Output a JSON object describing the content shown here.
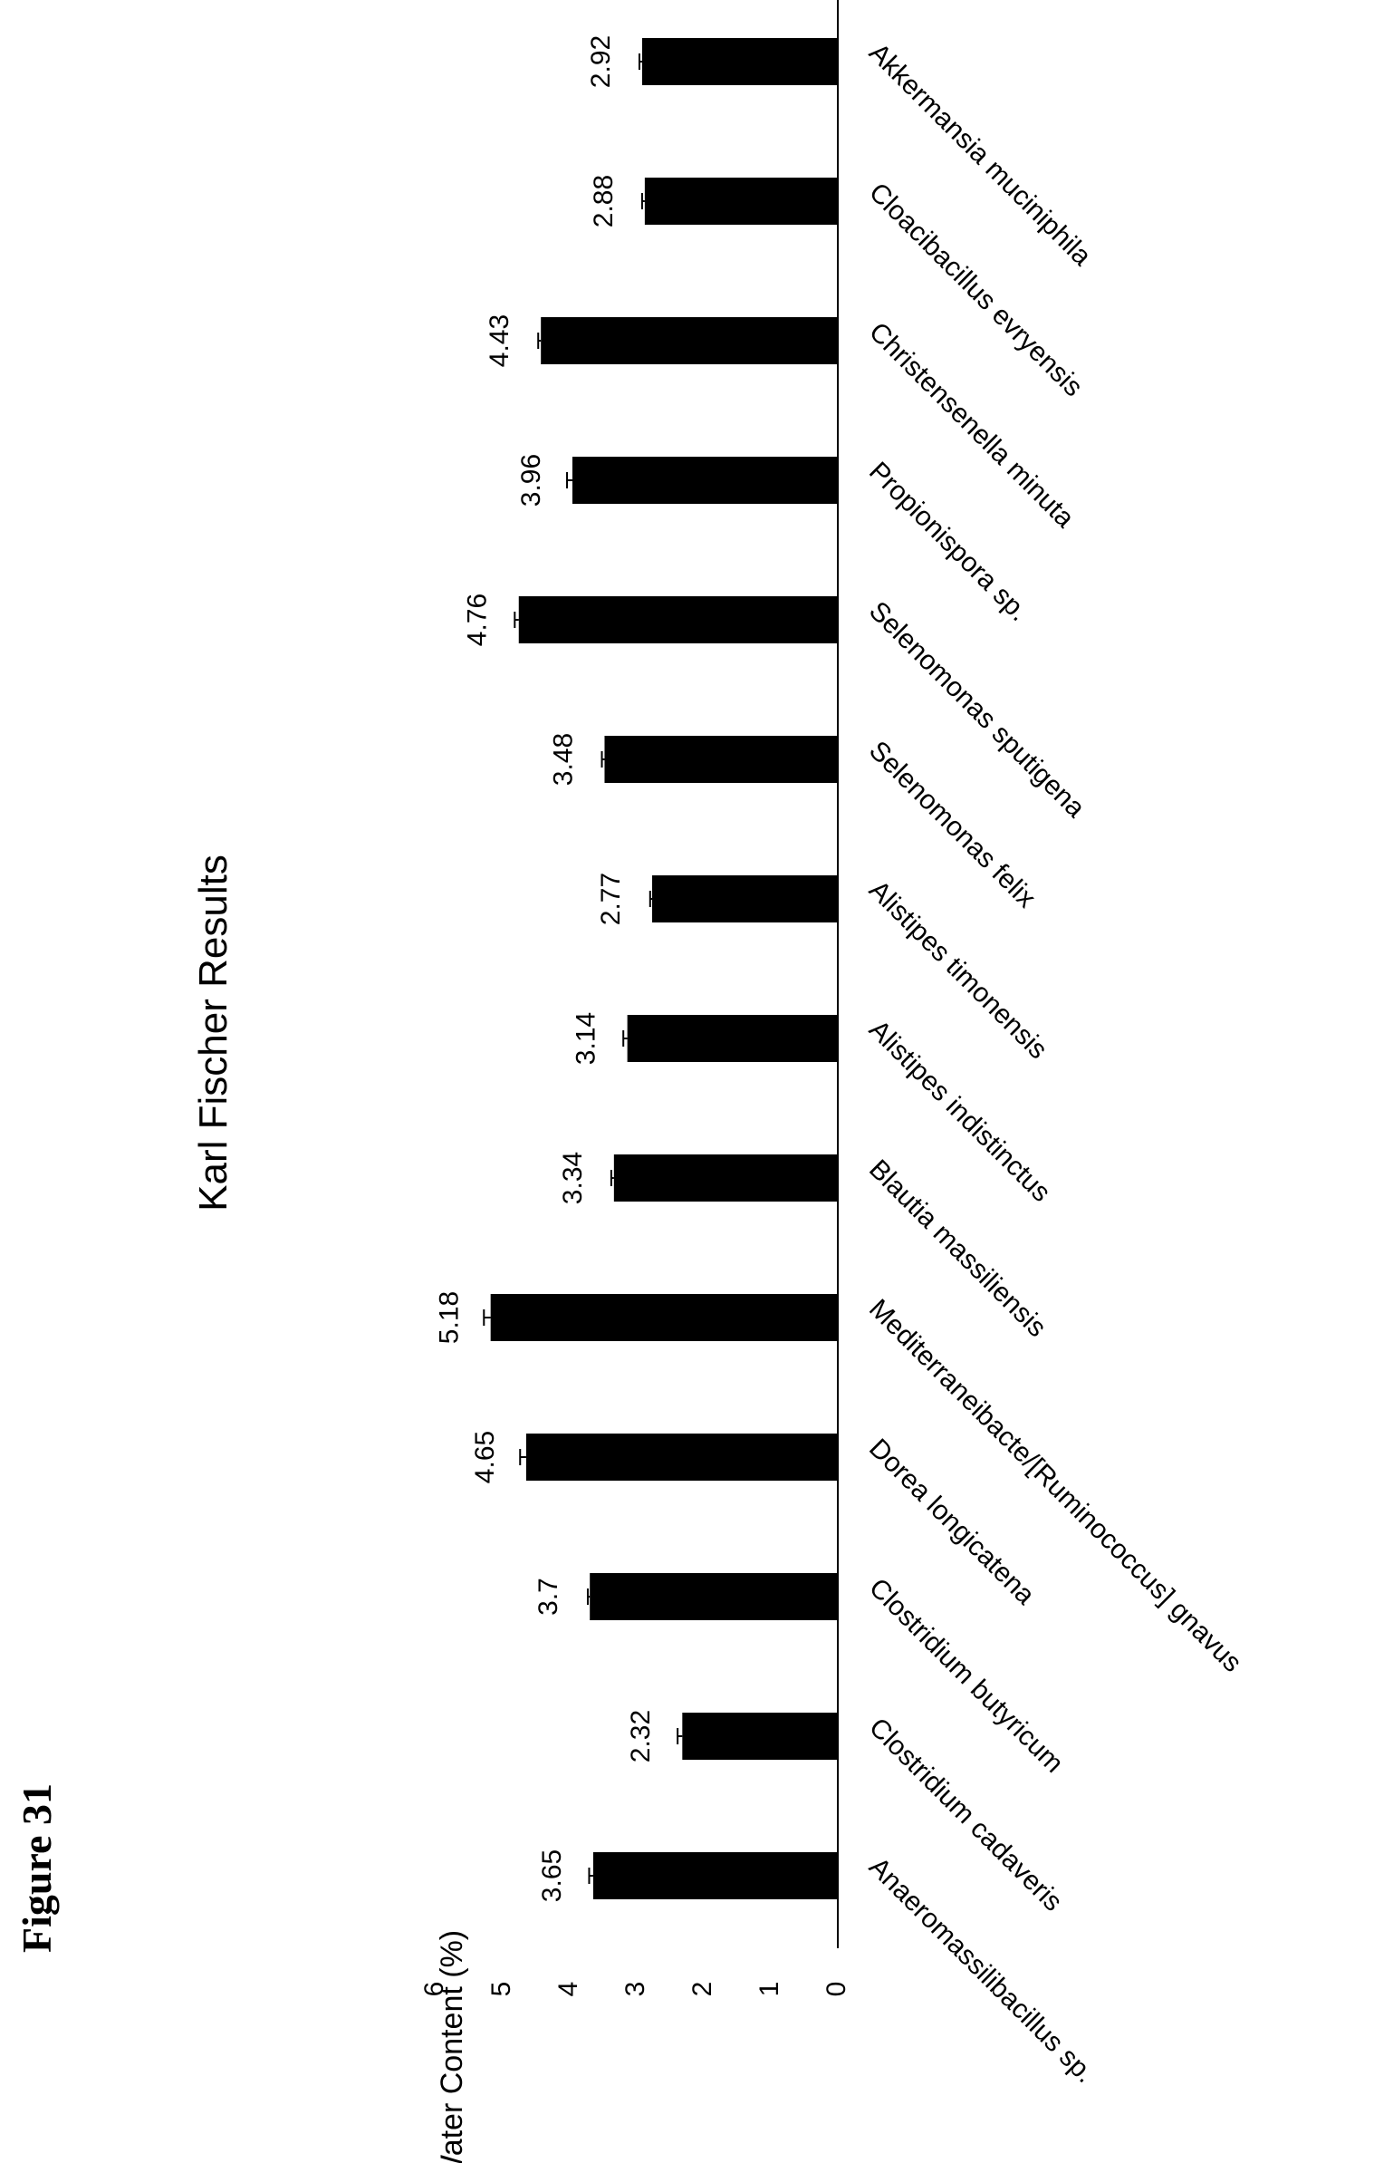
{
  "figure_label": "Figure 31",
  "chart_data": {
    "type": "bar",
    "orientation": "rotated -90deg (bars extend leftward from baseline)",
    "title": "Karl Fischer Results",
    "xlabel": "",
    "ylabel": "Water Content (%)",
    "ylim": [
      0,
      6
    ],
    "yticks": [
      "0",
      "1",
      "2",
      "3",
      "4",
      "5",
      "6"
    ],
    "grid": false,
    "legend": "none",
    "error_bars": true,
    "categories": [
      "Anaeromassilibacillus sp.",
      "Clostridium cadaveris",
      "Clostridium butyricum",
      "Dorea longicatena",
      "Mediterraneibacte/[Ruminococcus] gnavus",
      "Blautia massiliensis",
      "Alistipes indistinctus",
      "Alistipes timonensis",
      "Selenomonas felix",
      "Selenomonas sputigena",
      "Propionispora sp.",
      "Christensenella minuta",
      "Cloacibacillus evryensis",
      "Akkermansia muciniphila"
    ],
    "values": [
      3.65,
      2.32,
      3.7,
      4.65,
      5.18,
      3.34,
      3.14,
      2.77,
      3.48,
      4.76,
      3.96,
      4.43,
      2.88,
      2.92
    ],
    "value_labels": [
      "3.65",
      "2.32",
      "3.7",
      "4.65",
      "5.18",
      "3.34",
      "3.14",
      "2.77",
      "3.48",
      "4.76",
      "3.96",
      "4.43",
      "2.88",
      "2.92"
    ],
    "errors": [
      0.06,
      0.07,
      0.03,
      0.09,
      0.1,
      0.04,
      0.06,
      0.03,
      0.04,
      0.06,
      0.08,
      0.04,
      0.04,
      0.04
    ],
    "bar_color": "#000000"
  }
}
